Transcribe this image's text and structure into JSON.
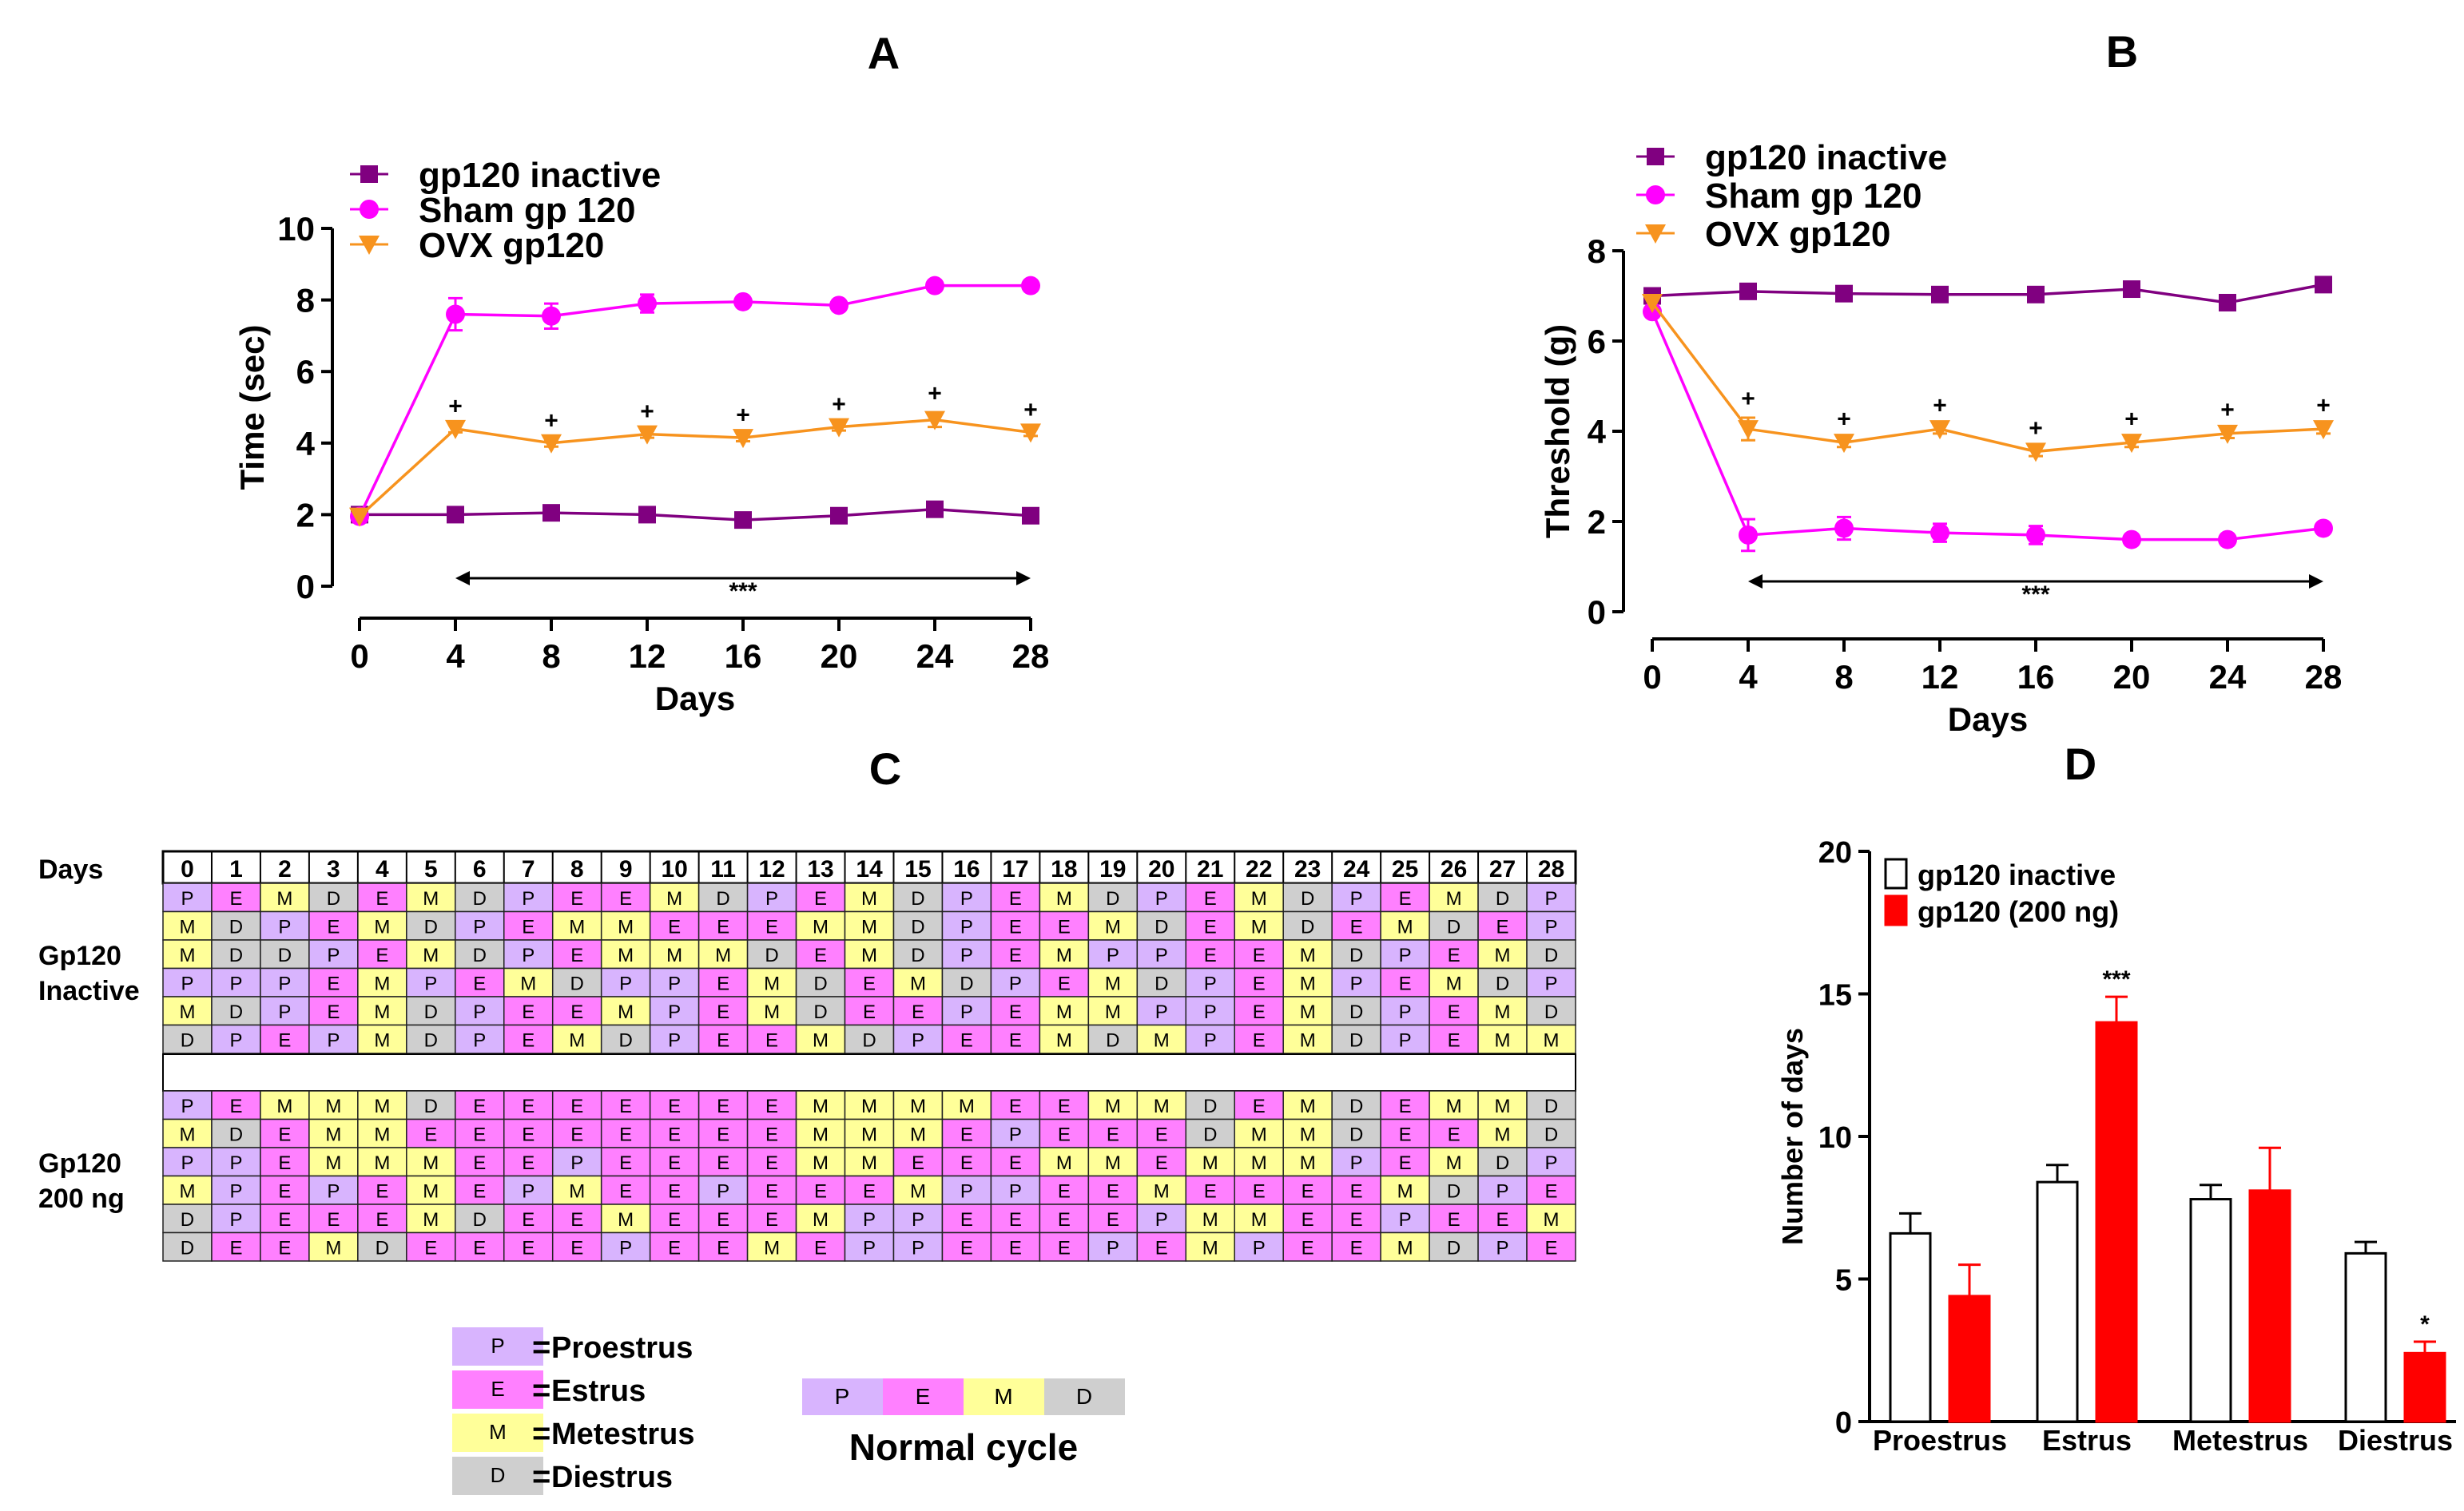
{
  "colors": {
    "inactive": "#800080",
    "sham": "#ff00ff",
    "ovx": "#f7931e",
    "bar_red": "#ff0000",
    "state_P": "#d8b4fe",
    "state_E": "#ff80ff",
    "state_M": "#ffff99",
    "state_D": "#cfcfcf"
  },
  "chart_data": [
    {
      "panel": "A",
      "type": "line",
      "title": "A",
      "xlabel": "Days",
      "ylabel": "Time (sec)",
      "x": [
        0,
        4,
        8,
        12,
        16,
        20,
        24,
        28
      ],
      "xlim": [
        0,
        28
      ],
      "ylim": [
        0,
        10
      ],
      "yticks": [
        0,
        2,
        4,
        6,
        8,
        10
      ],
      "series": [
        {
          "name": "gp120 inactive",
          "marker": "square",
          "values": [
            2.0,
            2.0,
            2.05,
            2.0,
            1.85,
            1.97,
            2.15,
            1.97
          ],
          "errors": [
            0.05,
            0.05,
            0.05,
            0.05,
            0.05,
            0.05,
            0.1,
            0.05
          ]
        },
        {
          "name": "Sham gp 120",
          "marker": "circle",
          "values": [
            1.95,
            7.6,
            7.55,
            7.9,
            7.95,
            7.85,
            8.4,
            8.4
          ],
          "errors": [
            0.05,
            0.45,
            0.35,
            0.25,
            0.05,
            0.05,
            0.05,
            0.05
          ]
        },
        {
          "name": "OVX  gp120",
          "marker": "triangle-down",
          "values": [
            1.95,
            4.4,
            4.0,
            4.25,
            4.15,
            4.45,
            4.65,
            4.3
          ],
          "errors": [
            0.05,
            0.1,
            0.1,
            0.1,
            0.1,
            0.1,
            0.2,
            0.1
          ]
        }
      ],
      "plus_marks": "+",
      "significance": "***"
    },
    {
      "panel": "B",
      "type": "line",
      "title": "B",
      "xlabel": "Days",
      "ylabel": "Threshold (g)",
      "x": [
        0,
        4,
        8,
        12,
        16,
        20,
        24,
        28
      ],
      "xlim": [
        0,
        28
      ],
      "ylim": [
        0,
        8
      ],
      "yticks": [
        0,
        2,
        4,
        6,
        8
      ],
      "series": [
        {
          "name": "gp120 inactive",
          "marker": "square",
          "values": [
            7.0,
            7.1,
            7.05,
            7.03,
            7.03,
            7.15,
            6.85,
            7.25
          ],
          "errors": [
            0.05,
            0.05,
            0.05,
            0.05,
            0.05,
            0.05,
            0.05,
            0.05
          ]
        },
        {
          "name": "Sham gp 120",
          "marker": "circle",
          "values": [
            6.65,
            1.7,
            1.85,
            1.75,
            1.7,
            1.6,
            1.6,
            1.85
          ],
          "errors": [
            0.05,
            0.35,
            0.25,
            0.2,
            0.2,
            0.05,
            0.05,
            0.05
          ]
        },
        {
          "name": "OVX  gp120",
          "marker": "triangle-down",
          "values": [
            6.85,
            4.05,
            3.75,
            4.05,
            3.55,
            3.75,
            3.95,
            4.05
          ],
          "errors": [
            0.05,
            0.25,
            0.1,
            0.1,
            0.1,
            0.1,
            0.1,
            0.1
          ]
        }
      ],
      "plus_marks": "+",
      "significance": "***"
    },
    {
      "panel": "C",
      "type": "table",
      "title": "C",
      "days_label": "Days",
      "days": [
        "0",
        "1",
        "2",
        "3",
        "4",
        "5",
        "6",
        "7",
        "8",
        "9",
        "10",
        "11",
        "12",
        "13",
        "14",
        "15",
        "16",
        "17",
        "18",
        "19",
        "20",
        "21",
        "22",
        "23",
        "24",
        "25",
        "26",
        "27",
        "28"
      ],
      "group1_label": [
        "Gp120",
        "Inactive"
      ],
      "group2_label": [
        "Gp120",
        "200 ng"
      ],
      "group1_rows": [
        [
          "P",
          "E",
          "M",
          "D",
          "E",
          "M",
          "D",
          "P",
          "E",
          "E",
          "M",
          "D",
          "P",
          "E",
          "M",
          "D",
          "P",
          "E",
          "M",
          "D",
          "P",
          "E",
          "M",
          "D",
          "P",
          "E",
          "M",
          "D",
          "P"
        ],
        [
          "M",
          "D",
          "P",
          "E",
          "M",
          "D",
          "P",
          "E",
          "M",
          "M",
          "E",
          "E",
          "E",
          "M",
          "M",
          "D",
          "P",
          "E",
          "E",
          "M",
          "D",
          "E",
          "M",
          "D",
          "E",
          "M",
          "D",
          "E",
          "P"
        ],
        [
          "M",
          "D",
          "D",
          "P",
          "E",
          "M",
          "D",
          "P",
          "E",
          "M",
          "M",
          "M",
          "D",
          "E",
          "M",
          "D",
          "P",
          "E",
          "M",
          "P",
          "P",
          "E",
          "E",
          "M",
          "D",
          "P",
          "E",
          "M",
          "D"
        ],
        [
          "P",
          "P",
          "P",
          "E",
          "M",
          "P",
          "E",
          "M",
          "D",
          "P",
          "P",
          "E",
          "M",
          "D",
          "E",
          "M",
          "D",
          "P",
          "E",
          "M",
          "D",
          "P",
          "E",
          "M",
          "P",
          "E",
          "M",
          "D",
          "P"
        ],
        [
          "M",
          "D",
          "P",
          "E",
          "M",
          "D",
          "P",
          "E",
          "E",
          "M",
          "P",
          "E",
          "M",
          "D",
          "E",
          "E",
          "P",
          "E",
          "M",
          "M",
          "P",
          "P",
          "E",
          "M",
          "D",
          "P",
          "E",
          "M",
          "D"
        ],
        [
          "D",
          "P",
          "E",
          "P",
          "M",
          "D",
          "P",
          "E",
          "M",
          "D",
          "P",
          "E",
          "E",
          "M",
          "D",
          "P",
          "E",
          "E",
          "M",
          "D",
          "M",
          "P",
          "E",
          "M",
          "D",
          "P",
          "E",
          "M",
          "M"
        ]
      ],
      "group2_rows": [
        [
          "P",
          "E",
          "M",
          "M",
          "M",
          "D",
          "E",
          "E",
          "E",
          "E",
          "E",
          "E",
          "E",
          "M",
          "M",
          "M",
          "M",
          "E",
          "E",
          "M",
          "M",
          "D",
          "E",
          "M",
          "D",
          "E",
          "M",
          "M",
          "D"
        ],
        [
          "M",
          "D",
          "E",
          "M",
          "M",
          "E",
          "E",
          "E",
          "E",
          "E",
          "E",
          "E",
          "E",
          "M",
          "M",
          "M",
          "E",
          "P",
          "E",
          "E",
          "E",
          "D",
          "M",
          "M",
          "D",
          "E",
          "E",
          "M",
          "D"
        ],
        [
          "P",
          "P",
          "E",
          "M",
          "M",
          "M",
          "E",
          "E",
          "P",
          "E",
          "E",
          "E",
          "E",
          "M",
          "M",
          "E",
          "E",
          "E",
          "M",
          "M",
          "E",
          "M",
          "M",
          "M",
          "P",
          "E",
          "M",
          "D",
          "P"
        ],
        [
          "M",
          "P",
          "E",
          "P",
          "E",
          "M",
          "E",
          "P",
          "M",
          "E",
          "E",
          "P",
          "E",
          "E",
          "E",
          "M",
          "P",
          "P",
          "E",
          "E",
          "M",
          "E",
          "E",
          "E",
          "E",
          "M",
          "D",
          "P",
          "E"
        ],
        [
          "D",
          "P",
          "E",
          "E",
          "E",
          "M",
          "D",
          "E",
          "E",
          "M",
          "E",
          "E",
          "E",
          "M",
          "P",
          "P",
          "E",
          "E",
          "E",
          "E",
          "P",
          "M",
          "M",
          "E",
          "E",
          "P",
          "E",
          "E",
          "M"
        ],
        [
          "D",
          "E",
          "E",
          "M",
          "D",
          "E",
          "E",
          "E",
          "E",
          "P",
          "E",
          "E",
          "M",
          "E",
          "P",
          "P",
          "E",
          "E",
          "E",
          "P",
          "E",
          "M",
          "P",
          "E",
          "E",
          "M",
          "D",
          "P",
          "E"
        ]
      ],
      "legend": [
        {
          "code": "P",
          "label": "Proestrus"
        },
        {
          "code": "E",
          "label": "Estrus"
        },
        {
          "code": "M",
          "label": "Metestrus"
        },
        {
          "code": "D",
          "label": "Diestrus"
        }
      ],
      "equals": "=",
      "normal_cycle": [
        "P",
        "E",
        "M",
        "D"
      ],
      "normal_cycle_label": "Normal cycle"
    },
    {
      "panel": "D",
      "type": "bar",
      "title": "D",
      "ylabel": "Number of days",
      "ylim": [
        0,
        20
      ],
      "yticks": [
        0,
        5,
        10,
        15,
        20
      ],
      "categories": [
        "Proestrus",
        "Estrus",
        "Metestrus",
        "Diestrus"
      ],
      "series": [
        {
          "name": "gp120 inactive",
          "values": [
            6.6,
            8.4,
            7.8,
            5.9
          ],
          "errors": [
            0.7,
            0.6,
            0.5,
            0.4
          ]
        },
        {
          "name": "gp120 (200 ng)",
          "values": [
            4.4,
            14.0,
            8.1,
            2.4
          ],
          "errors": [
            1.1,
            0.9,
            1.5,
            0.4
          ]
        }
      ],
      "annotations": [
        {
          "category": "Estrus",
          "series": "gp120 (200 ng)",
          "text": "***"
        },
        {
          "category": "Diestrus",
          "series": "gp120 (200 ng)",
          "text": "*"
        }
      ]
    }
  ]
}
